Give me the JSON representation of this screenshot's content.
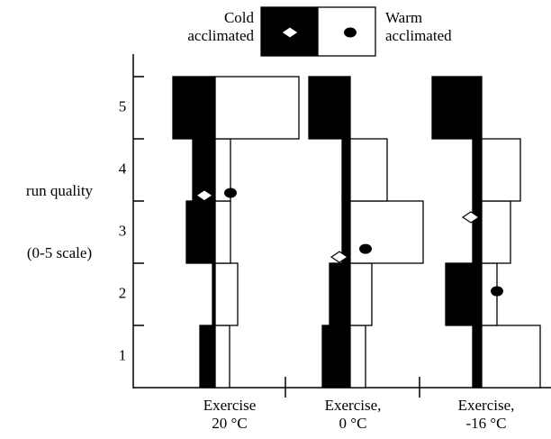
{
  "chart_data": {
    "type": "kite",
    "ylabel": [
      "run quality",
      "(0-5 scale)"
    ],
    "ylim": [
      0.5,
      5.5
    ],
    "yticks": [
      1,
      2,
      3,
      4,
      5
    ],
    "groups": [
      [
        "Exercise",
        "20 °C"
      ],
      [
        "Exercise,",
        "0 °C"
      ],
      [
        "Exercise,",
        "-16 °C"
      ]
    ],
    "series": [
      {
        "name": [
          "Cold",
          "acclimated"
        ],
        "color": "#000000",
        "marker": "diamond",
        "values": [
          [
            17,
            3,
            32,
            25,
            47
          ],
          [
            31,
            23,
            9,
            9,
            46
          ],
          [
            10,
            40,
            10,
            10,
            55
          ]
        ],
        "means": [
          3.59,
          2.6,
          3.24
        ]
      },
      {
        "name": [
          "Warm",
          "acclimated"
        ],
        "color": "#ffffff",
        "marker": "dot",
        "values": [
          [
            16,
            25,
            17,
            17,
            93
          ],
          [
            17,
            24,
            81,
            41,
            0
          ],
          [
            65,
            17,
            32,
            43,
            0
          ]
        ],
        "means": [
          3.63,
          2.73,
          2.05
        ]
      }
    ]
  }
}
